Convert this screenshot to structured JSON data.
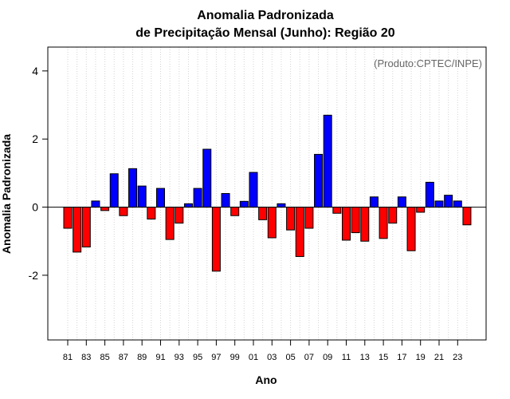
{
  "chart_data": {
    "type": "bar",
    "title": [
      "Anomalia Padronizada",
      "de Precipitação Mensal (Junho): Região 20"
    ],
    "xlabel": "Ano",
    "ylabel": "Anomalia Padronizada",
    "credit": "(Produto:CPTEC/INPE)",
    "ylim": [
      -3.9,
      4.7
    ],
    "yticks": [
      -2,
      0,
      2,
      4
    ],
    "ytick_labels": [
      "-2",
      "0",
      "2",
      "4"
    ],
    "x_tick_labels": [
      "81",
      "83",
      "85",
      "87",
      "89",
      "91",
      "93",
      "95",
      "97",
      "99",
      "01",
      "03",
      "05",
      "07",
      "09",
      "11",
      "13",
      "15",
      "17",
      "19",
      "21",
      "23"
    ],
    "grid": "vertical dotted",
    "colors": {
      "positive": "#0000ff",
      "negative": "#ff0000",
      "edge": "#000000",
      "grid": "#d3d3d3"
    },
    "categories": [
      "81",
      "82",
      "83",
      "84",
      "85",
      "86",
      "87",
      "88",
      "89",
      "90",
      "91",
      "92",
      "93",
      "94",
      "95",
      "96",
      "97",
      "98",
      "99",
      "00",
      "01",
      "02",
      "03",
      "04",
      "05",
      "06",
      "07",
      "08",
      "09",
      "10",
      "11",
      "12",
      "13",
      "14",
      "15",
      "16",
      "17",
      "18",
      "19",
      "20",
      "21",
      "22",
      "23",
      "24"
    ],
    "values": [
      -0.62,
      -1.32,
      -1.17,
      0.18,
      -0.1,
      0.98,
      -0.25,
      1.13,
      0.62,
      -0.35,
      0.55,
      -0.95,
      -0.47,
      0.1,
      0.55,
      1.7,
      -1.88,
      0.4,
      -0.25,
      0.17,
      1.02,
      -0.37,
      -0.9,
      0.1,
      -0.67,
      -1.45,
      -0.62,
      1.55,
      2.7,
      -0.18,
      -0.97,
      -0.75,
      -1.0,
      0.3,
      -0.92,
      -0.47,
      0.3,
      -1.28,
      -0.15,
      0.73,
      0.18,
      0.35,
      0.18,
      -0.52
    ]
  }
}
